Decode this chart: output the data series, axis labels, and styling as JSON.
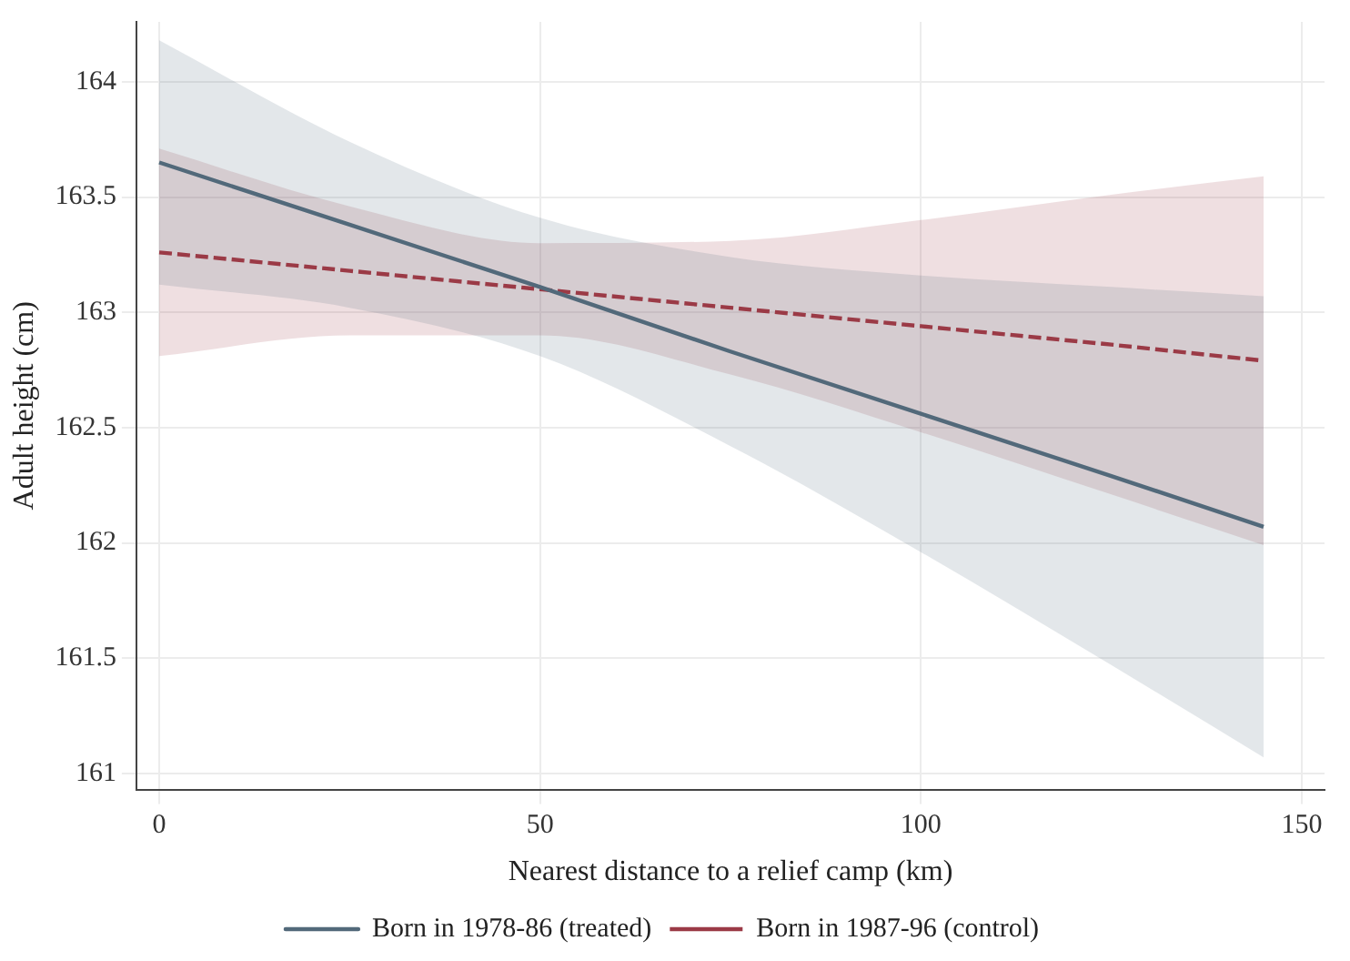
{
  "chart_data": {
    "type": "line",
    "xlabel": "Nearest distance to a relief camp (km)",
    "ylabel": "Adult height (cm)",
    "x": [
      0,
      25,
      50,
      75,
      100,
      125,
      145
    ],
    "series": [
      {
        "name": "Born in 1978-86 (treated)",
        "color": "#52697a",
        "line_style": "solid",
        "values": [
          163.65,
          163.38,
          163.11,
          162.83,
          162.56,
          162.29,
          162.07
        ],
        "lower": [
          163.12,
          163.02,
          162.81,
          162.42,
          161.96,
          161.47,
          161.07
        ],
        "upper": [
          164.18,
          163.74,
          163.41,
          163.24,
          163.16,
          163.11,
          163.07
        ]
      },
      {
        "name": "Born in 1987-96 (control)",
        "color": "#9b3a46",
        "line_style": "dashed",
        "values": [
          163.26,
          163.18,
          163.1,
          163.02,
          162.94,
          162.86,
          162.79
        ],
        "lower": [
          162.81,
          162.9,
          162.9,
          162.73,
          162.48,
          162.21,
          161.99
        ],
        "upper": [
          163.71,
          163.46,
          163.3,
          163.31,
          163.4,
          163.51,
          163.59
        ]
      }
    ],
    "xlim": [
      -3,
      153
    ],
    "xticks": [
      0,
      50,
      100,
      150
    ],
    "ylim": [
      160.93,
      164.26
    ],
    "yticks": [
      161,
      161.5,
      162,
      162.5,
      163,
      163.5,
      164
    ],
    "grid": true,
    "legend": "bottom",
    "marker": "none"
  }
}
